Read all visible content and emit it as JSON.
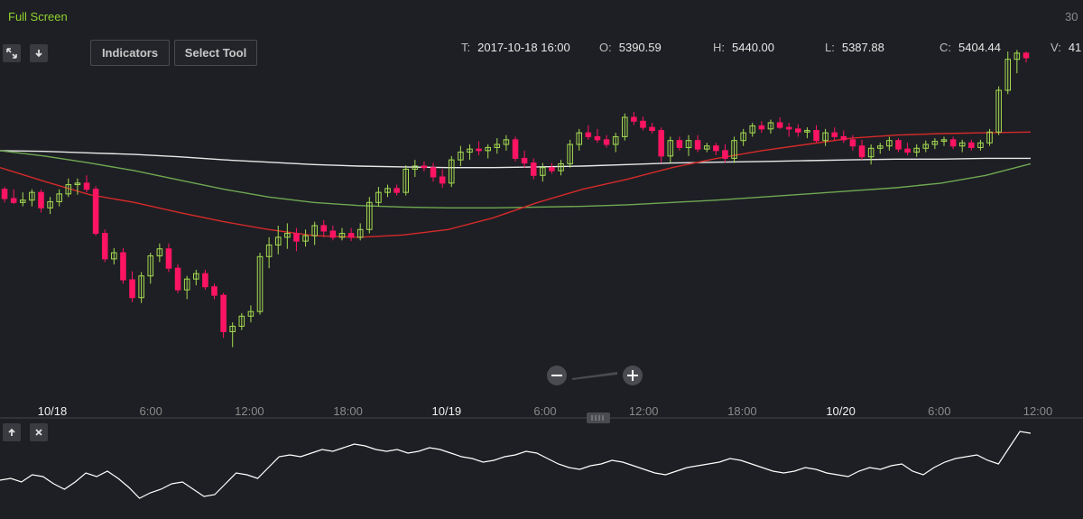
{
  "header": {
    "full_screen_label": "Full Screen",
    "range_label": "30",
    "indicators_label": "Indicators",
    "select_tool_label": "Select Tool",
    "expand_icon": "expand-icon",
    "download_icon": "arrow-down-icon"
  },
  "ohlc": {
    "t_key": "T:",
    "t_val": "2017-10-18 16:00",
    "o_key": "O:",
    "o_val": "5390.59",
    "h_key": "H:",
    "h_val": "5440.00",
    "l_key": "L:",
    "l_val": "5387.88",
    "c_key": "C:",
    "c_val": "5404.44",
    "v_key": "V:",
    "v_val": "41"
  },
  "colors": {
    "up": "#a6dc52",
    "down": "#ff1463",
    "ma_fast": "#d42a2a",
    "ma_mid": "#6fa852",
    "ma_slow": "#e8e8e8",
    "oscillator": "#ffffff"
  },
  "chart_data": {
    "type": "candlestick",
    "x_labels": [
      "10/18",
      "6:00",
      "12:00",
      "18:00",
      "10/19",
      "6:00",
      "12:00",
      "18:00",
      "10/20",
      "6:00",
      "12:00"
    ],
    "major_x_labels": [
      "10/18",
      "10/19",
      "10/20"
    ],
    "candles": [
      {
        "o": 5262,
        "h": 5265,
        "l": 5245,
        "c": 5250
      },
      {
        "o": 5250,
        "h": 5262,
        "l": 5243,
        "c": 5245
      },
      {
        "o": 5245,
        "h": 5258,
        "l": 5240,
        "c": 5248
      },
      {
        "o": 5248,
        "h": 5262,
        "l": 5240,
        "c": 5258
      },
      {
        "o": 5258,
        "h": 5262,
        "l": 5232,
        "c": 5238
      },
      {
        "o": 5238,
        "h": 5252,
        "l": 5230,
        "c": 5246
      },
      {
        "o": 5246,
        "h": 5262,
        "l": 5240,
        "c": 5256
      },
      {
        "o": 5256,
        "h": 5276,
        "l": 5252,
        "c": 5268
      },
      {
        "o": 5268,
        "h": 5276,
        "l": 5255,
        "c": 5270
      },
      {
        "o": 5270,
        "h": 5280,
        "l": 5258,
        "c": 5262
      },
      {
        "o": 5262,
        "h": 5266,
        "l": 5202,
        "c": 5205
      },
      {
        "o": 5205,
        "h": 5210,
        "l": 5168,
        "c": 5172
      },
      {
        "o": 5172,
        "h": 5186,
        "l": 5165,
        "c": 5180
      },
      {
        "o": 5180,
        "h": 5186,
        "l": 5140,
        "c": 5145
      },
      {
        "o": 5145,
        "h": 5156,
        "l": 5116,
        "c": 5122
      },
      {
        "o": 5122,
        "h": 5155,
        "l": 5115,
        "c": 5150
      },
      {
        "o": 5150,
        "h": 5180,
        "l": 5140,
        "c": 5176
      },
      {
        "o": 5176,
        "h": 5192,
        "l": 5168,
        "c": 5185
      },
      {
        "o": 5185,
        "h": 5192,
        "l": 5155,
        "c": 5160
      },
      {
        "o": 5160,
        "h": 5165,
        "l": 5128,
        "c": 5132
      },
      {
        "o": 5132,
        "h": 5150,
        "l": 5120,
        "c": 5146
      },
      {
        "o": 5146,
        "h": 5158,
        "l": 5138,
        "c": 5153
      },
      {
        "o": 5153,
        "h": 5158,
        "l": 5132,
        "c": 5136
      },
      {
        "o": 5136,
        "h": 5140,
        "l": 5120,
        "c": 5125
      },
      {
        "o": 5125,
        "h": 5128,
        "l": 5070,
        "c": 5078
      },
      {
        "o": 5078,
        "h": 5090,
        "l": 5058,
        "c": 5085
      },
      {
        "o": 5085,
        "h": 5102,
        "l": 5080,
        "c": 5098
      },
      {
        "o": 5098,
        "h": 5112,
        "l": 5090,
        "c": 5104
      },
      {
        "o": 5104,
        "h": 5180,
        "l": 5100,
        "c": 5175
      },
      {
        "o": 5175,
        "h": 5200,
        "l": 5160,
        "c": 5190
      },
      {
        "o": 5190,
        "h": 5215,
        "l": 5178,
        "c": 5200
      },
      {
        "o": 5200,
        "h": 5218,
        "l": 5185,
        "c": 5205
      },
      {
        "o": 5205,
        "h": 5212,
        "l": 5182,
        "c": 5195
      },
      {
        "o": 5195,
        "h": 5210,
        "l": 5188,
        "c": 5202
      },
      {
        "o": 5202,
        "h": 5220,
        "l": 5190,
        "c": 5215
      },
      {
        "o": 5215,
        "h": 5222,
        "l": 5200,
        "c": 5208
      },
      {
        "o": 5208,
        "h": 5215,
        "l": 5196,
        "c": 5200
      },
      {
        "o": 5200,
        "h": 5212,
        "l": 5196,
        "c": 5205
      },
      {
        "o": 5205,
        "h": 5212,
        "l": 5195,
        "c": 5200
      },
      {
        "o": 5200,
        "h": 5218,
        "l": 5196,
        "c": 5210
      },
      {
        "o": 5210,
        "h": 5252,
        "l": 5205,
        "c": 5245
      },
      {
        "o": 5245,
        "h": 5265,
        "l": 5240,
        "c": 5258
      },
      {
        "o": 5258,
        "h": 5268,
        "l": 5252,
        "c": 5263
      },
      {
        "o": 5263,
        "h": 5268,
        "l": 5254,
        "c": 5258
      },
      {
        "o": 5258,
        "h": 5293,
        "l": 5254,
        "c": 5288
      },
      {
        "o": 5288,
        "h": 5300,
        "l": 5278,
        "c": 5292
      },
      {
        "o": 5292,
        "h": 5298,
        "l": 5285,
        "c": 5290
      },
      {
        "o": 5290,
        "h": 5296,
        "l": 5272,
        "c": 5278
      },
      {
        "o": 5278,
        "h": 5288,
        "l": 5264,
        "c": 5270
      },
      {
        "o": 5270,
        "h": 5305,
        "l": 5265,
        "c": 5300
      },
      {
        "o": 5300,
        "h": 5318,
        "l": 5292,
        "c": 5310
      },
      {
        "o": 5310,
        "h": 5320,
        "l": 5300,
        "c": 5314
      },
      {
        "o": 5314,
        "h": 5324,
        "l": 5306,
        "c": 5312
      },
      {
        "o": 5312,
        "h": 5320,
        "l": 5302,
        "c": 5316
      },
      {
        "o": 5316,
        "h": 5328,
        "l": 5308,
        "c": 5320
      },
      {
        "o": 5320,
        "h": 5332,
        "l": 5312,
        "c": 5326
      },
      {
        "o": 5326,
        "h": 5330,
        "l": 5298,
        "c": 5302
      },
      {
        "o": 5302,
        "h": 5312,
        "l": 5290,
        "c": 5296
      },
      {
        "o": 5296,
        "h": 5302,
        "l": 5275,
        "c": 5280
      },
      {
        "o": 5280,
        "h": 5296,
        "l": 5272,
        "c": 5290
      },
      {
        "o": 5290,
        "h": 5296,
        "l": 5282,
        "c": 5286
      },
      {
        "o": 5286,
        "h": 5300,
        "l": 5280,
        "c": 5295
      },
      {
        "o": 5295,
        "h": 5326,
        "l": 5290,
        "c": 5320
      },
      {
        "o": 5320,
        "h": 5340,
        "l": 5312,
        "c": 5335
      },
      {
        "o": 5335,
        "h": 5345,
        "l": 5326,
        "c": 5330
      },
      {
        "o": 5330,
        "h": 5340,
        "l": 5322,
        "c": 5326
      },
      {
        "o": 5326,
        "h": 5332,
        "l": 5316,
        "c": 5320
      },
      {
        "o": 5320,
        "h": 5335,
        "l": 5310,
        "c": 5330
      },
      {
        "o": 5330,
        "h": 5360,
        "l": 5325,
        "c": 5355
      },
      {
        "o": 5355,
        "h": 5362,
        "l": 5345,
        "c": 5350
      },
      {
        "o": 5350,
        "h": 5356,
        "l": 5338,
        "c": 5342
      },
      {
        "o": 5342,
        "h": 5348,
        "l": 5334,
        "c": 5338
      },
      {
        "o": 5338,
        "h": 5342,
        "l": 5296,
        "c": 5305
      },
      {
        "o": 5305,
        "h": 5330,
        "l": 5296,
        "c": 5325
      },
      {
        "o": 5325,
        "h": 5330,
        "l": 5312,
        "c": 5316
      },
      {
        "o": 5316,
        "h": 5332,
        "l": 5305,
        "c": 5325
      },
      {
        "o": 5325,
        "h": 5332,
        "l": 5310,
        "c": 5314
      },
      {
        "o": 5314,
        "h": 5322,
        "l": 5310,
        "c": 5318
      },
      {
        "o": 5318,
        "h": 5322,
        "l": 5306,
        "c": 5312
      },
      {
        "o": 5312,
        "h": 5320,
        "l": 5296,
        "c": 5302
      },
      {
        "o": 5302,
        "h": 5330,
        "l": 5296,
        "c": 5325
      },
      {
        "o": 5325,
        "h": 5340,
        "l": 5318,
        "c": 5335
      },
      {
        "o": 5335,
        "h": 5348,
        "l": 5330,
        "c": 5344
      },
      {
        "o": 5344,
        "h": 5350,
        "l": 5335,
        "c": 5340
      },
      {
        "o": 5340,
        "h": 5352,
        "l": 5334,
        "c": 5348
      },
      {
        "o": 5348,
        "h": 5355,
        "l": 5340,
        "c": 5342
      },
      {
        "o": 5342,
        "h": 5348,
        "l": 5330,
        "c": 5340
      },
      {
        "o": 5340,
        "h": 5346,
        "l": 5330,
        "c": 5336
      },
      {
        "o": 5336,
        "h": 5342,
        "l": 5328,
        "c": 5338
      },
      {
        "o": 5338,
        "h": 5345,
        "l": 5322,
        "c": 5325
      },
      {
        "o": 5325,
        "h": 5340,
        "l": 5318,
        "c": 5335
      },
      {
        "o": 5335,
        "h": 5342,
        "l": 5325,
        "c": 5330
      },
      {
        "o": 5330,
        "h": 5338,
        "l": 5322,
        "c": 5326
      },
      {
        "o": 5326,
        "h": 5332,
        "l": 5312,
        "c": 5318
      },
      {
        "o": 5318,
        "h": 5326,
        "l": 5300,
        "c": 5304
      },
      {
        "o": 5304,
        "h": 5320,
        "l": 5294,
        "c": 5315
      },
      {
        "o": 5315,
        "h": 5322,
        "l": 5308,
        "c": 5318
      },
      {
        "o": 5318,
        "h": 5330,
        "l": 5312,
        "c": 5325
      },
      {
        "o": 5325,
        "h": 5328,
        "l": 5310,
        "c": 5314
      },
      {
        "o": 5314,
        "h": 5322,
        "l": 5306,
        "c": 5310
      },
      {
        "o": 5310,
        "h": 5320,
        "l": 5304,
        "c": 5315
      },
      {
        "o": 5315,
        "h": 5325,
        "l": 5310,
        "c": 5320
      },
      {
        "o": 5320,
        "h": 5328,
        "l": 5314,
        "c": 5324
      },
      {
        "o": 5324,
        "h": 5330,
        "l": 5318,
        "c": 5326
      },
      {
        "o": 5326,
        "h": 5330,
        "l": 5314,
        "c": 5318
      },
      {
        "o": 5318,
        "h": 5326,
        "l": 5310,
        "c": 5322
      },
      {
        "o": 5322,
        "h": 5326,
        "l": 5312,
        "c": 5316
      },
      {
        "o": 5316,
        "h": 5326,
        "l": 5312,
        "c": 5322
      },
      {
        "o": 5322,
        "h": 5340,
        "l": 5318,
        "c": 5336
      },
      {
        "o": 5336,
        "h": 5395,
        "l": 5332,
        "c": 5390
      },
      {
        "o": 5390,
        "h": 5440,
        "l": 5385,
        "c": 5430
      },
      {
        "o": 5430,
        "h": 5442,
        "l": 5412,
        "c": 5438
      },
      {
        "o": 5438,
        "h": 5440,
        "l": 5426,
        "c": 5432
      }
    ],
    "ma_fast": [
      5290,
      5272,
      5255,
      5245,
      5232,
      5220,
      5210,
      5202,
      5200,
      5203,
      5210,
      5225,
      5245,
      5262,
      5275,
      5290,
      5302,
      5312,
      5320,
      5328,
      5332,
      5334,
      5335,
      5336
    ],
    "ma_mid": [
      5312,
      5305,
      5296,
      5286,
      5274,
      5262,
      5252,
      5245,
      5241,
      5239,
      5238,
      5238,
      5239,
      5240,
      5242,
      5245,
      5248,
      5252,
      5256,
      5260,
      5264,
      5270,
      5280,
      5295
    ],
    "ma_slow": [
      5312,
      5311,
      5309,
      5307,
      5304,
      5300,
      5297,
      5294,
      5292,
      5291,
      5290,
      5290,
      5291,
      5292,
      5294,
      5296,
      5297,
      5298,
      5299,
      5300,
      5301,
      5301,
      5302,
      5302
    ],
    "oscillator": [
      38,
      40,
      36,
      44,
      42,
      34,
      28,
      36,
      46,
      42,
      48,
      40,
      30,
      18,
      24,
      28,
      34,
      36,
      28,
      20,
      22,
      34,
      46,
      44,
      40,
      52,
      64,
      66,
      64,
      68,
      72,
      70,
      74,
      78,
      76,
      72,
      70,
      72,
      68,
      70,
      74,
      72,
      68,
      64,
      62,
      58,
      60,
      64,
      66,
      70,
      68,
      62,
      56,
      52,
      50,
      54,
      56,
      60,
      58,
      54,
      50,
      46,
      44,
      48,
      52,
      54,
      56,
      58,
      62,
      60,
      56,
      52,
      48,
      46,
      48,
      52,
      50,
      46,
      44,
      42,
      48,
      52,
      50,
      54,
      56,
      48,
      44,
      52,
      58,
      62,
      64,
      66,
      60,
      56,
      74,
      92,
      90
    ],
    "ylim": [
      5040,
      5460
    ],
    "osc_ylim": [
      0,
      100
    ],
    "zoom_level": 0.5,
    "grid": false
  }
}
